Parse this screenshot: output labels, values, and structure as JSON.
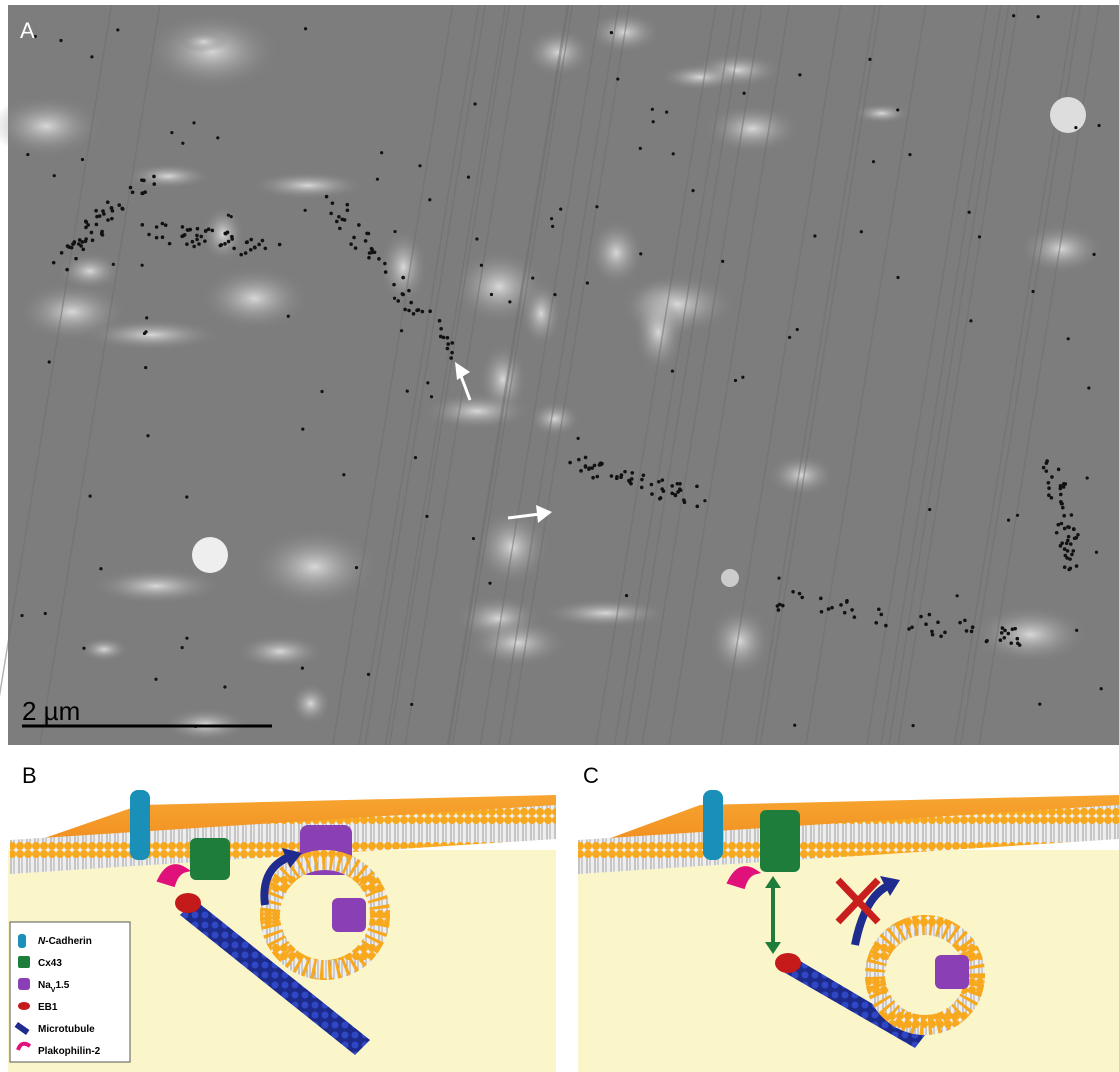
{
  "panels": {
    "a": {
      "label": "A",
      "scale_bar": "2 µm"
    },
    "b": {
      "label": "B"
    },
    "c": {
      "label": "C"
    }
  },
  "legend": {
    "items": [
      {
        "italic": "N",
        "label": "-Cadherin"
      },
      {
        "label": "Cx43"
      },
      {
        "label": "Na",
        "sub": "V",
        "label_end": "1.5"
      },
      {
        "label": "EB1"
      },
      {
        "label": "Microtubule"
      },
      {
        "label": "Plakophilin-2"
      }
    ]
  }
}
